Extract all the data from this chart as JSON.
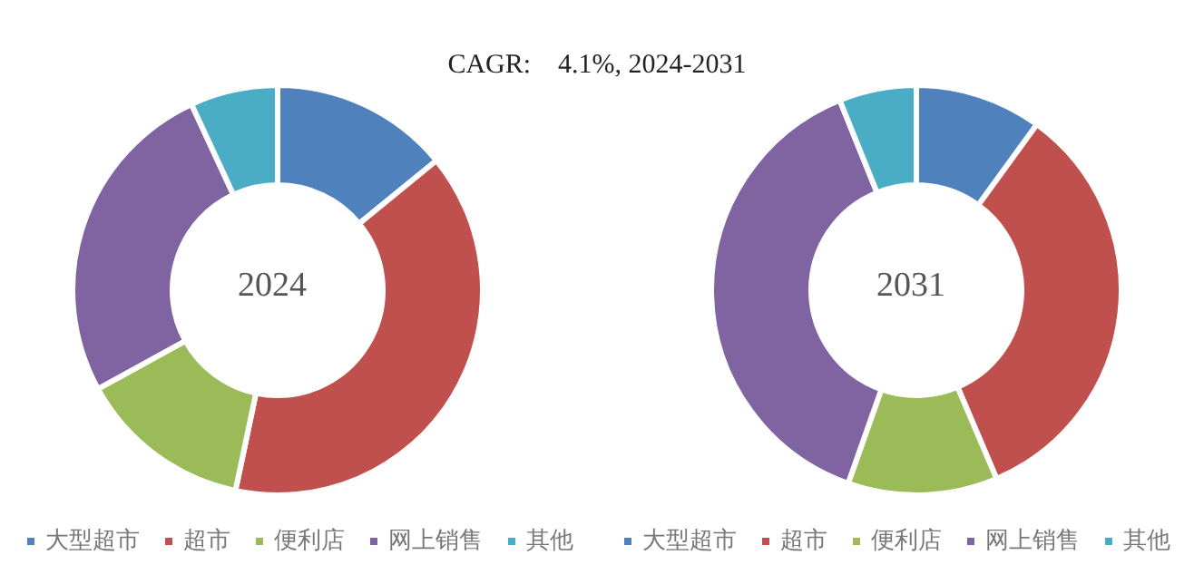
{
  "chart_data": [
    {
      "type": "donut",
      "title": "CAGR:    4.1%, 2024-2031",
      "annotations": [
        "2024"
      ],
      "categories": [
        "大型超市",
        "超市",
        "便利店",
        "网上销售",
        "其他"
      ],
      "values": [
        14.1,
        39.2,
        13.7,
        26.1,
        6.9
      ],
      "colors": [
        "#4f81bd",
        "#c0504d",
        "#9bbb59",
        "#8064a2",
        "#4bacc6"
      ],
      "legend": "bottom"
    },
    {
      "type": "donut",
      "annotations": [
        "2031"
      ],
      "categories": [
        "大型超市",
        "超市",
        "便利店",
        "网上销售",
        "其他"
      ],
      "values": [
        10.0,
        33.6,
        11.8,
        38.5,
        6.1
      ],
      "colors": [
        "#4f81bd",
        "#c0504d",
        "#9bbb59",
        "#8064a2",
        "#4bacc6"
      ],
      "legend": "bottom"
    }
  ]
}
